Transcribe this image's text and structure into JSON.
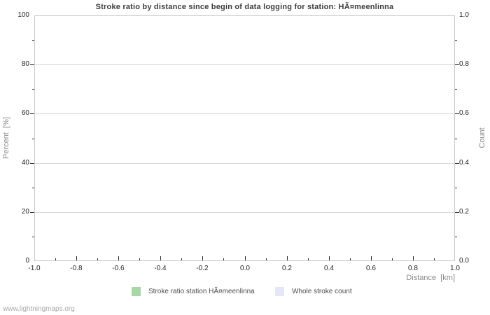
{
  "page": {
    "footer": "www.lightningmaps.org"
  },
  "chart_data": {
    "type": "line",
    "title": "Stroke ratio by distance since begin of data logging for station: HÃ¤meenlinna",
    "xlabel": "Distance  [km]",
    "ylabel": "Percent  [%]",
    "ylabel_right": "Count",
    "xlim": [
      -1.0,
      1.0
    ],
    "ylim_left": [
      0,
      100
    ],
    "ylim_right": [
      0.0,
      1.0
    ],
    "grid": "horizontal-only",
    "gridline_values": [
      20,
      40,
      60,
      80
    ],
    "x_ticks": {
      "labels": [
        "-1.0",
        "-0.8",
        "-0.6",
        "-0.4",
        "-0.2",
        "0.0",
        "0.2",
        "0.4",
        "0.6",
        "0.8",
        "1.0"
      ],
      "values": [
        -1.0,
        -0.8,
        -0.6,
        -0.4,
        -0.2,
        0.0,
        0.2,
        0.4,
        0.6,
        0.8,
        1.0
      ],
      "minor_values": [
        -0.9,
        -0.7,
        -0.5,
        -0.3,
        -0.1,
        0.1,
        0.3,
        0.5,
        0.7,
        0.9
      ]
    },
    "y_ticks_left": {
      "labels": [
        "0",
        "20",
        "40",
        "60",
        "80",
        "100"
      ],
      "values": [
        0,
        20,
        40,
        60,
        80,
        100
      ],
      "minor_values": [
        10,
        30,
        50,
        70,
        90
      ]
    },
    "y_ticks_right": {
      "labels": [
        "0.0",
        "0.2",
        "0.4",
        "0.6",
        "0.8",
        "1.0"
      ],
      "values": [
        0.0,
        0.2,
        0.4,
        0.6,
        0.8,
        1.0
      ],
      "minor_values": [
        0.1,
        0.3,
        0.5,
        0.7,
        0.9
      ]
    },
    "legend": [
      {
        "label": "Stroke ratio station HÃ¤meenlinna",
        "color": "#a7d7a7"
      },
      {
        "label": "Whole stroke count",
        "color": "#e6e6f8"
      }
    ],
    "series": [
      {
        "name": "Stroke ratio station HÃ¤meenlinna",
        "x": [],
        "values": []
      },
      {
        "name": "Whole stroke count",
        "x": [],
        "values": []
      }
    ]
  },
  "colors": {
    "background": "#ffffff",
    "frame": "#c8c8c8",
    "grid": "#d9d9d9",
    "tick": "#2a2a2a",
    "title_text": "#3c3c3c",
    "axis_label_text": "#8a8a8a",
    "tick_label_text": "#1f1f1f",
    "legend_text": "#4d4d4d",
    "footer_text": "#a8a8a8"
  }
}
